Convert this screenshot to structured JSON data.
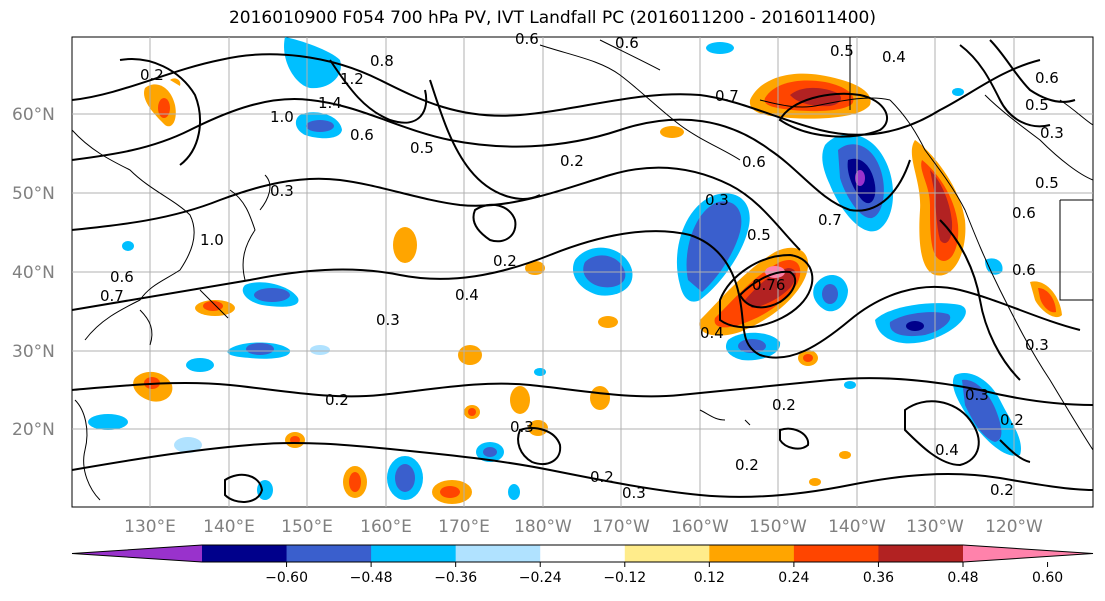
{
  "title": "2016010900 F054 700 hPa PV, IVT Landfall PC (2016011200 - 2016011400)",
  "lat_labels": [
    "60°N",
    "50°N",
    "40°N",
    "30°N",
    "20°N"
  ],
  "lon_labels": [
    "130°E",
    "140°E",
    "150°E",
    "160°E",
    "170°E",
    "180°W",
    "170°W",
    "160°W",
    "150°W",
    "140°W",
    "130°W",
    "120°W"
  ],
  "contour_labels": [
    "0.6",
    "0.6",
    "0.5",
    "0.4",
    "1.2",
    "0.8",
    "1.4",
    "1.0",
    "0.6",
    "0.5",
    "0.2",
    "0.7",
    "0.6",
    "0.7",
    "0.5",
    "0.3",
    "0.3",
    "1.0",
    "0.6",
    "0.7",
    "0.2",
    "0.4",
    "0.3",
    "0.76",
    "0.4",
    "0.5",
    "0.3",
    "0.3",
    "0.6",
    "0.5",
    "0.6",
    "0.3",
    "0.2",
    "0.2",
    "0.3",
    "0.2",
    "0.2",
    "0.3",
    "0.4",
    "0.2",
    "0.2",
    "0.2",
    "0.6"
  ],
  "colorbar": {
    "ticks": [
      "−0.60",
      "−0.48",
      "−0.36",
      "−0.24",
      "−0.12",
      "0.12",
      "0.24",
      "0.36",
      "0.48",
      "0.60"
    ],
    "colors": [
      "#9932cc",
      "#00008b",
      "#3a5fcd",
      "#00bfff",
      "#b0e2ff",
      "#ffffff",
      "#ffec8b",
      "#ffa500",
      "#ff4500",
      "#b22222",
      "#ff82ab"
    ]
  }
}
